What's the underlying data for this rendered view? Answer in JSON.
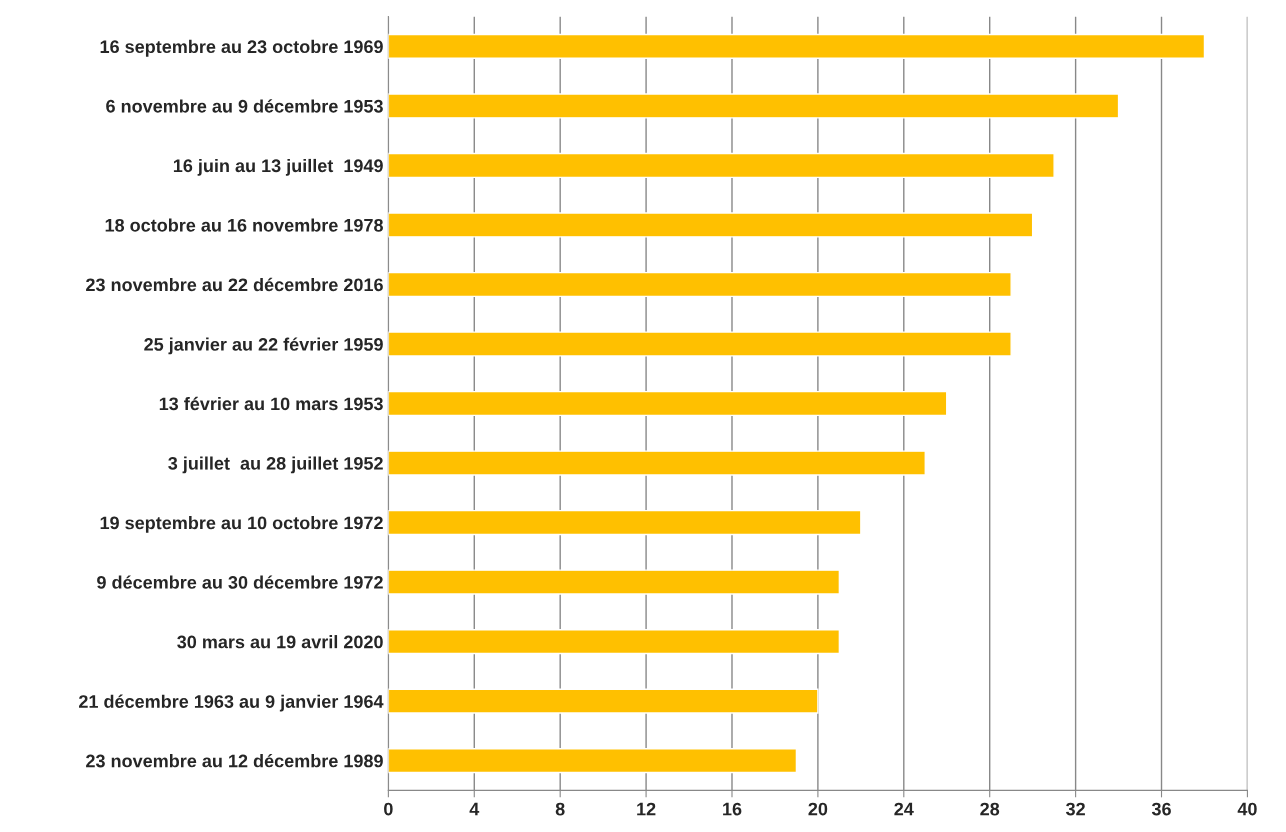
{
  "chart_data": {
    "type": "bar",
    "orientation": "horizontal",
    "categories": [
      "16 septembre au 23 octobre 1969",
      "6 novembre au 9 décembre 1953",
      "16 juin au 13 juillet  1949",
      "18 octobre au 16 novembre 1978",
      "23 novembre au 22 décembre 2016",
      "25 janvier au 22 février 1959",
      "13 février au 10 mars 1953",
      "3 juillet  au 28 juillet 1952",
      "19 septembre au 10 octobre 1972",
      "9 décembre au 30 décembre 1972",
      "30 mars au 19 avril 2020",
      "21 décembre 1963 au 9 janvier 1964",
      "23 novembre au 12 décembre 1989"
    ],
    "values": [
      38,
      34,
      31,
      30,
      29,
      29,
      26,
      25,
      22,
      21,
      21,
      20,
      19
    ],
    "color": "#ffc000",
    "xlim": [
      0,
      40
    ],
    "xticks": [
      0,
      4,
      8,
      12,
      16,
      20,
      24,
      28,
      32,
      36,
      40
    ],
    "grid": "x"
  }
}
